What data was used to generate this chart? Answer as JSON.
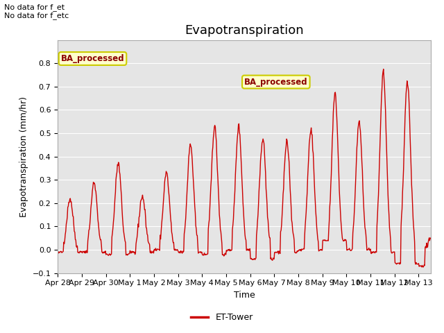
{
  "title": "Evapotranspiration",
  "xlabel": "Time",
  "ylabel": "Evapotranspiration (mm/hr)",
  "ylim": [
    -0.1,
    0.9
  ],
  "yticks": [
    -0.1,
    0.0,
    0.1,
    0.2,
    0.3,
    0.4,
    0.5,
    0.6,
    0.7,
    0.8
  ],
  "background_color": "#ffffff",
  "plot_bg_color": "#e5e5e5",
  "line_color": "#cc0000",
  "line_width": 1.0,
  "text_top_left": "No data for f_et\nNo data for f_etc",
  "legend_label": "ET-Tower",
  "legend_box_color": "#ffffcc",
  "legend_box_edge": "#cccc00",
  "legend_text_color": "#8b0000",
  "annotation_label": "BA_processed",
  "xtick_labels": [
    "Apr 28",
    "Apr 29",
    "Apr 30",
    "May 1",
    "May 2",
    "May 3",
    "May 4",
    "May 5",
    "May 6",
    "May 7",
    "May 8",
    "May 9",
    "May 10",
    "May 11",
    "May 12",
    "May 13"
  ],
  "daily_peaks": [
    0.22,
    0.29,
    0.37,
    0.23,
    0.33,
    0.45,
    0.53,
    0.53,
    0.48,
    0.47,
    0.52,
    0.67,
    0.55,
    0.76,
    0.73,
    0.05
  ],
  "daily_mins": [
    -0.01,
    -0.01,
    -0.02,
    -0.01,
    0.0,
    -0.01,
    -0.02,
    0.0,
    -0.04,
    -0.01,
    0.0,
    0.04,
    0.0,
    -0.01,
    -0.06,
    -0.07
  ],
  "title_fontsize": 13,
  "axis_fontsize": 9,
  "tick_fontsize": 8
}
